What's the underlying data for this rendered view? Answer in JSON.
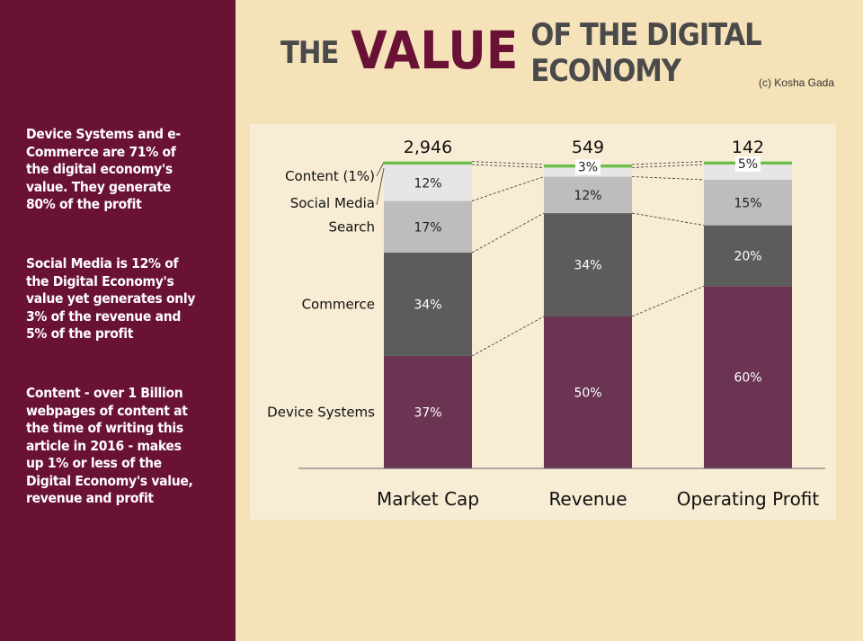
{
  "title": {
    "part1": "THE",
    "part2": "VALUE",
    "part3": "OF THE DIGITAL ECONOMY"
  },
  "credit": "(c) Kosha Gada",
  "sidebar": {
    "p1": "Device Systems and e-\nCommerce are 71% of\nthe digital economy's\nvalue.   They generate\n80% of the profit",
    "p2": "Social Media is 12% of\nthe Digital Economy's\nvalue yet generates only\n3% of the revenue and\n5% of the profit",
    "p3": "Content - over 1 Billion\nwebpages of content at\nthe time of writing this\narticle in 2016 - makes\nup 1% or less of the\nDigital Economy's value,\nrevenue and profit"
  },
  "colors": {
    "Device Systems": "#6b3453",
    "Commerce": "#5c5c5c",
    "Search": "#bdbdbd",
    "Social Media": "#e6e6e6",
    "Content": "#6cc04a"
  },
  "chart_data": {
    "type": "bar",
    "stacked": true,
    "normalized": true,
    "categories": [
      "Market Cap",
      "Revenue",
      "Operating Profit"
    ],
    "totals": [
      "2,946",
      "549",
      "142"
    ],
    "series": [
      {
        "name": "Device Systems",
        "values": [
          37,
          50,
          60
        ],
        "labels": [
          "37%",
          "50%",
          "60%"
        ]
      },
      {
        "name": "Commerce",
        "values": [
          34,
          34,
          20
        ],
        "labels": [
          "34%",
          "34%",
          "20%"
        ]
      },
      {
        "name": "Search",
        "values": [
          17,
          12,
          15
        ],
        "labels": [
          "17%",
          "12%",
          "15%"
        ]
      },
      {
        "name": "Social Media",
        "values": [
          12,
          3,
          5
        ],
        "labels": [
          "12%",
          "3%",
          "5%"
        ]
      },
      {
        "name": "Content",
        "values": [
          1,
          1,
          1
        ],
        "labels": [
          "",
          "",
          ""
        ]
      }
    ],
    "series_labels": [
      "Device Systems",
      "Commerce",
      "Search",
      "Social  Media",
      "Content (1%)"
    ],
    "ylim": [
      0,
      100
    ],
    "grid": false
  }
}
